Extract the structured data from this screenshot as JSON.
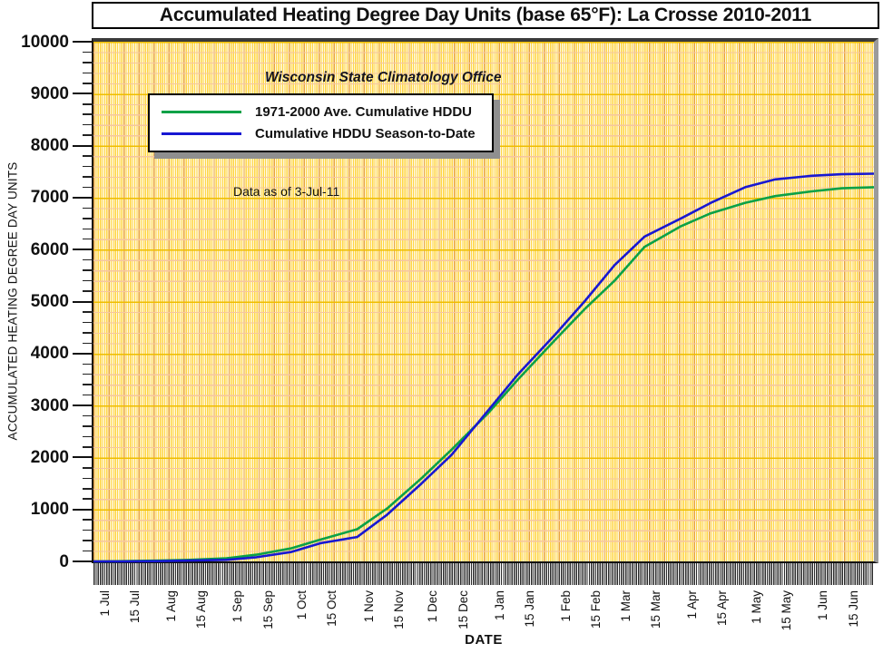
{
  "title": "Accumulated Heating Degree Day Units (base 65°F): La Crosse 2010-2011",
  "annotations": {
    "office": "Wisconsin State Climatology Office",
    "data_as_of": "Data as of 3-Jul-11"
  },
  "legend": [
    {
      "label": "1971-2000 Ave. Cumulative HDDU",
      "color": "#0AA147"
    },
    {
      "label": "Cumulative HDDU Season-to-Date",
      "color": "#1818D2"
    }
  ],
  "y_axis": {
    "title": "ACCUMULATED HEATING DEGREE DAY UNITS",
    "min": 0,
    "max": 10000,
    "major_step": 1000,
    "minor_step": 200,
    "major_ticks": [
      0,
      1000,
      2000,
      3000,
      4000,
      5000,
      6000,
      7000,
      8000,
      9000,
      10000
    ],
    "tick_labels": [
      "0",
      "1000",
      "2000",
      "3000",
      "4000",
      "5000",
      "6000",
      "7000",
      "8000",
      "9000",
      "10000"
    ]
  },
  "x_axis": {
    "title": "DATE",
    "tick_labels": [
      "1 Jul",
      "15 Jul",
      "1 Aug",
      "15 Aug",
      "1 Sep",
      "15 Sep",
      "1 Oct",
      "15 Oct",
      "1 Nov",
      "15 Nov",
      "1 Dec",
      "15 Dec",
      "1 Jan",
      "15 Jan",
      "1 Feb",
      "15 Feb",
      "1 Mar",
      "15 Mar",
      "1 Apr",
      "15 Apr",
      "1 May",
      "15 May",
      "1 Jun",
      "15 Jun"
    ],
    "tick_days": [
      0,
      14,
      31,
      45,
      62,
      76,
      92,
      106,
      123,
      137,
      153,
      167,
      184,
      198,
      215,
      229,
      243,
      257,
      274,
      288,
      304,
      318,
      335,
      349
    ]
  },
  "chart_data": {
    "type": "line",
    "title": "Accumulated Heating Degree Day Units (base 65°F): La Crosse 2010-2011",
    "xlabel": "DATE",
    "ylabel": "ACCUMULATED HEATING DEGREE DAY UNITS",
    "ylim": [
      0,
      10000
    ],
    "grid": true,
    "legend_position": "upper-left",
    "x_dates": [
      "1 Jul",
      "15 Jul",
      "1 Aug",
      "15 Aug",
      "1 Sep",
      "15 Sep",
      "1 Oct",
      "15 Oct",
      "1 Nov",
      "15 Nov",
      "1 Dec",
      "15 Dec",
      "1 Jan",
      "15 Jan",
      "1 Feb",
      "15 Feb",
      "1 Mar",
      "15 Mar",
      "1 Apr",
      "15 Apr",
      "1 May",
      "15 May",
      "1 Jun",
      "15 Jun",
      "30 Jun"
    ],
    "x_days": [
      0,
      14,
      31,
      45,
      62,
      76,
      92,
      106,
      123,
      137,
      153,
      167,
      184,
      198,
      215,
      229,
      243,
      257,
      274,
      288,
      304,
      318,
      335,
      349,
      364
    ],
    "series": [
      {
        "name": "1971-2000 Ave. Cumulative HDDU",
        "color": "#0AA147",
        "values": [
          0,
          5,
          15,
          30,
          60,
          130,
          250,
          420,
          620,
          1020,
          1600,
          2150,
          2850,
          3500,
          4250,
          4850,
          5400,
          6050,
          6450,
          6700,
          6900,
          7030,
          7120,
          7180,
          7200
        ]
      },
      {
        "name": "Cumulative HDDU Season-to-Date",
        "color": "#1818D2",
        "values": [
          0,
          0,
          5,
          15,
          30,
          80,
          180,
          350,
          470,
          900,
          1500,
          2050,
          2900,
          3600,
          4350,
          5000,
          5700,
          6250,
          6600,
          6900,
          7200,
          7350,
          7420,
          7450,
          7460
        ]
      }
    ]
  },
  "colors": {
    "plot_background": "#FFF8E0",
    "grid_daily_vertical": "#FFD645",
    "grid_weekly_vertical": "#E9A43C",
    "grid_minor_horizontal": "#F6C6A0",
    "grid_major_horizontal": "#EFBE00",
    "frame_top": "#3a3a3a",
    "frame_right": "#9b9b9b",
    "axis": "#111111"
  }
}
